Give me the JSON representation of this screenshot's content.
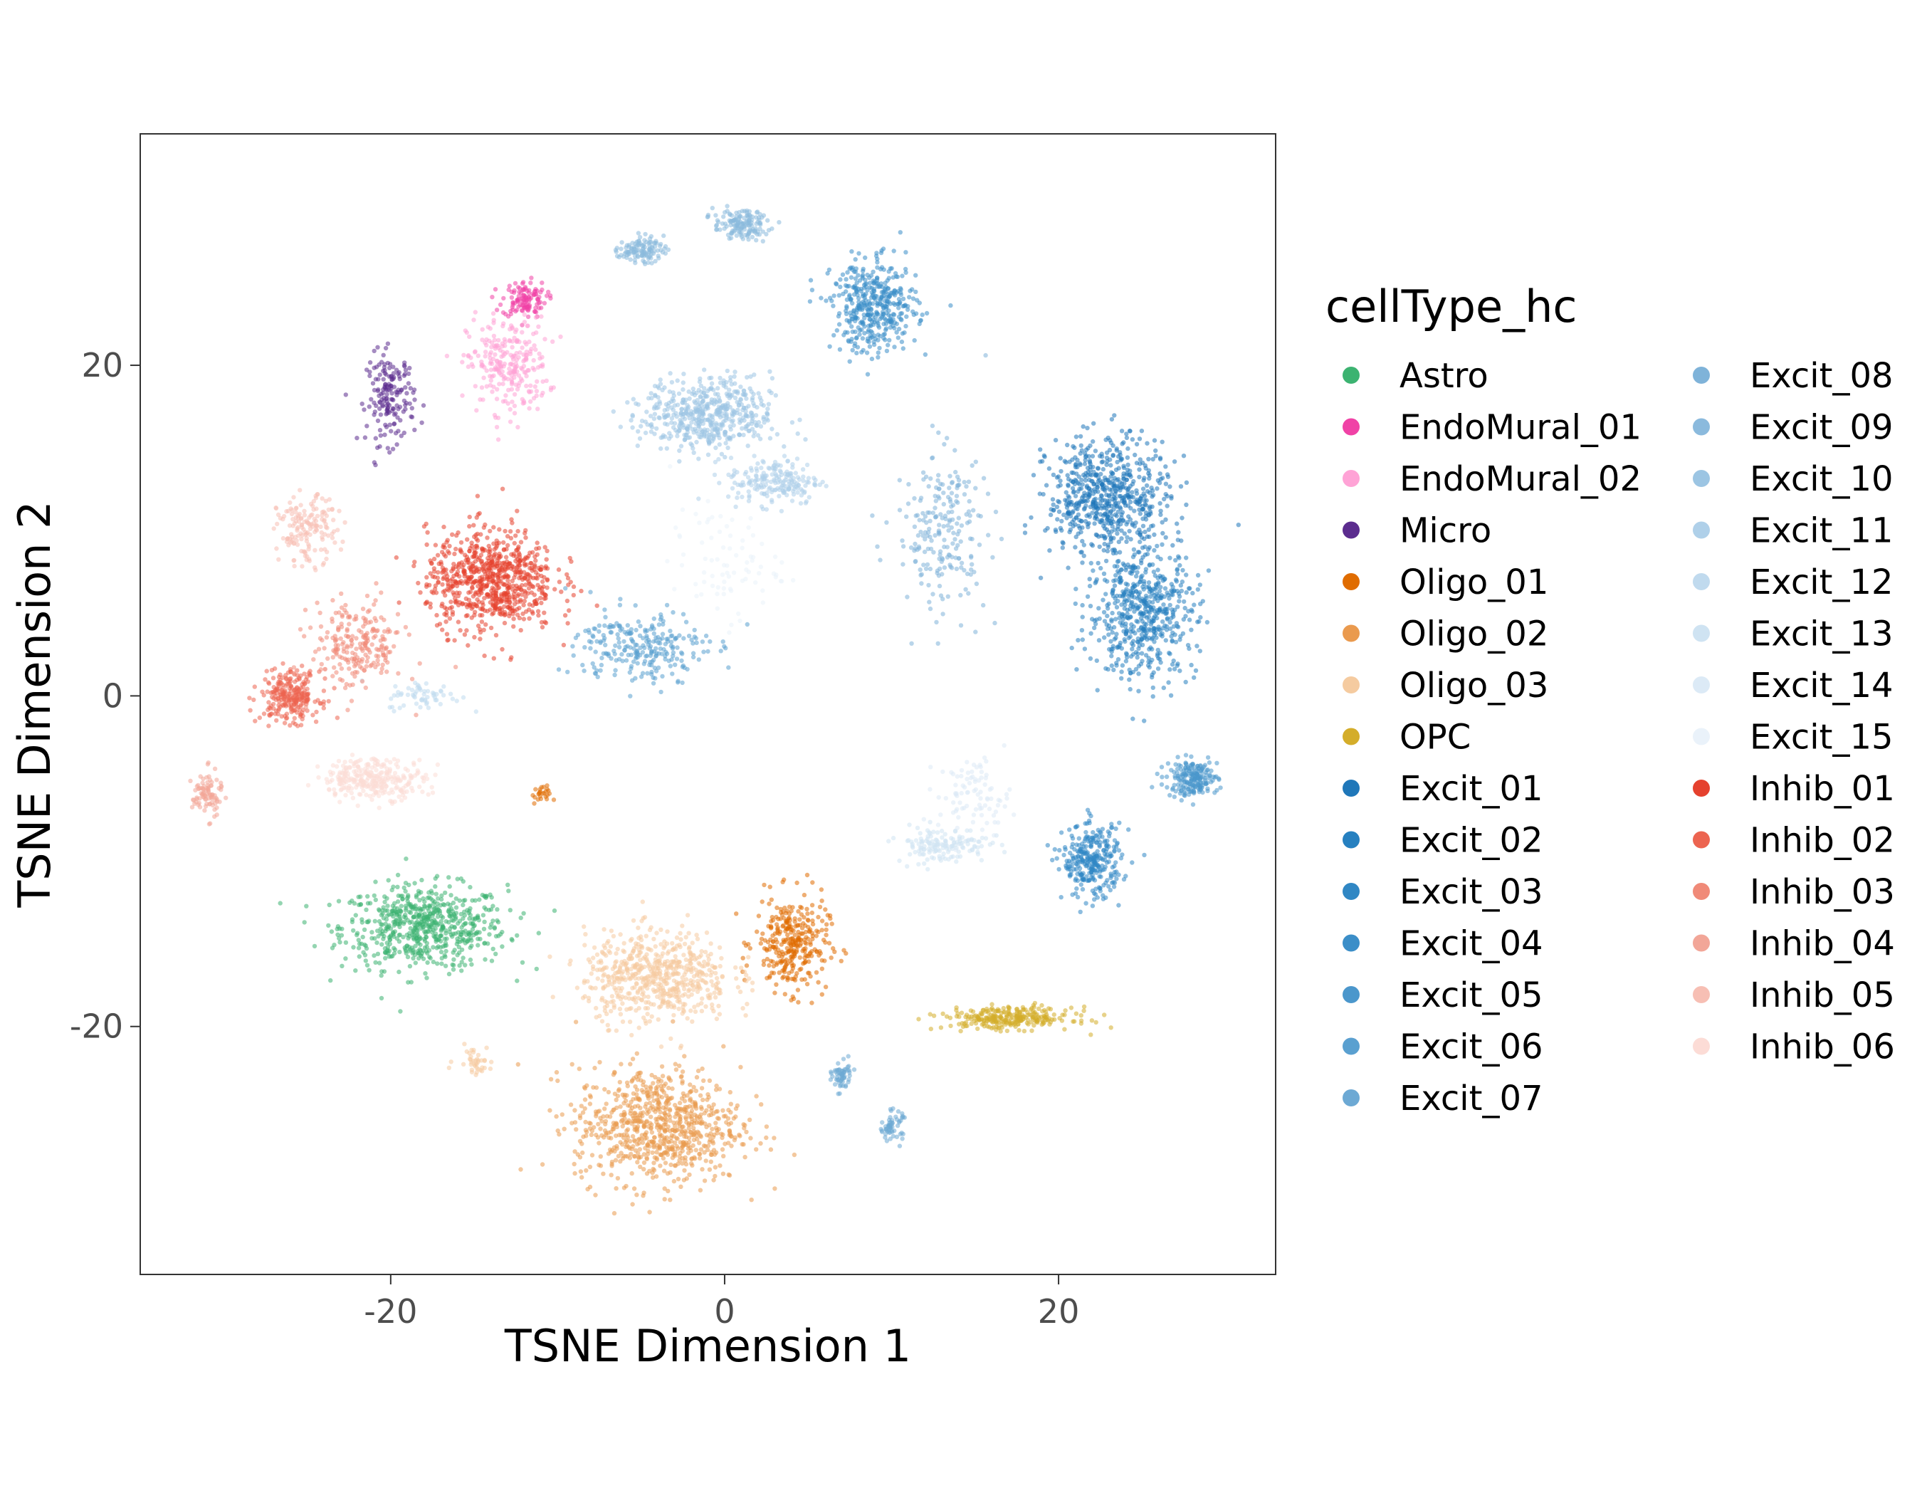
{
  "chart_data": {
    "type": "scatter",
    "title": "",
    "xlabel": "TSNE Dimension 1",
    "ylabel": "TSNE Dimension 2",
    "xlim": [
      -35,
      33
    ],
    "ylim": [
      -35,
      34
    ],
    "x_ticks": [
      -20,
      0,
      20
    ],
    "y_ticks": [
      -20,
      0,
      20
    ],
    "x_tick_labels": [
      "-20",
      "0",
      "20"
    ],
    "y_tick_labels": [
      "-20",
      "0",
      "20"
    ],
    "grid": false,
    "legend": {
      "title": "cellType_hc",
      "placement": "right",
      "columns": 2
    },
    "series": [
      {
        "name": "Astro",
        "color": "#3CB371",
        "clusters": [
          {
            "cx": -18,
            "cy": -14,
            "sx": 4.5,
            "sy": 2.3,
            "n": 650
          }
        ]
      },
      {
        "name": "EndoMural_01",
        "color": "#F042A6",
        "clusters": [
          {
            "cx": -12,
            "cy": 24,
            "sx": 1.2,
            "sy": 1.0,
            "n": 120
          }
        ]
      },
      {
        "name": "EndoMural_02",
        "color": "#FFA3D6",
        "clusters": [
          {
            "cx": -13,
            "cy": 20,
            "sx": 2.2,
            "sy": 2.6,
            "n": 260
          }
        ]
      },
      {
        "name": "Micro",
        "color": "#5B2C8E",
        "clusters": [
          {
            "cx": -20,
            "cy": 18,
            "sx": 1.3,
            "sy": 2.5,
            "n": 170
          }
        ]
      },
      {
        "name": "Oligo_01",
        "color": "#E06C00",
        "clusters": [
          {
            "cx": 4,
            "cy": -15,
            "sx": 2.0,
            "sy": 2.6,
            "n": 320
          },
          {
            "cx": -11,
            "cy": -6,
            "sx": 0.5,
            "sy": 0.5,
            "n": 25
          }
        ]
      },
      {
        "name": "Oligo_02",
        "color": "#EA9A4E",
        "clusters": [
          {
            "cx": -4,
            "cy": -26,
            "sx": 4.5,
            "sy": 3.2,
            "n": 800
          }
        ]
      },
      {
        "name": "Oligo_03",
        "color": "#F5CBA0",
        "clusters": [
          {
            "cx": -4,
            "cy": -17,
            "sx": 4.0,
            "sy": 2.5,
            "n": 620
          },
          {
            "cx": -15,
            "cy": -22,
            "sx": 1.0,
            "sy": 0.8,
            "n": 40
          }
        ]
      },
      {
        "name": "OPC",
        "color": "#D4AD2A",
        "clusters": [
          {
            "cx": 17,
            "cy": -19.5,
            "sx": 3.5,
            "sy": 0.6,
            "n": 280
          }
        ]
      },
      {
        "name": "Excit_01",
        "color": "#1F77B9",
        "clusters": [
          {
            "cx": 23,
            "cy": 12,
            "sx": 3.3,
            "sy": 3.3,
            "n": 650
          }
        ]
      },
      {
        "name": "Excit_02",
        "color": "#2680C0",
        "clusters": [
          {
            "cx": 25,
            "cy": 5,
            "sx": 3.0,
            "sy": 3.5,
            "n": 550
          }
        ]
      },
      {
        "name": "Excit_03",
        "color": "#3087C4",
        "clusters": [
          {
            "cx": 22,
            "cy": -10,
            "sx": 1.6,
            "sy": 2.0,
            "n": 300
          }
        ]
      },
      {
        "name": "Excit_04",
        "color": "#3B8EC8",
        "clusters": [
          {
            "cx": 9,
            "cy": 23.5,
            "sx": 2.3,
            "sy": 2.5,
            "n": 420
          }
        ]
      },
      {
        "name": "Excit_05",
        "color": "#4B97CC",
        "clusters": [
          {
            "cx": 28,
            "cy": -5,
            "sx": 1.4,
            "sy": 1.0,
            "n": 200
          }
        ]
      },
      {
        "name": "Excit_06",
        "color": "#5AA0D0",
        "clusters": [
          {
            "cx": -5,
            "cy": 3,
            "sx": 3.5,
            "sy": 2.0,
            "n": 260
          }
        ]
      },
      {
        "name": "Excit_07",
        "color": "#6DA9D4",
        "clusters": [
          {
            "cx": 10,
            "cy": -26,
            "sx": 0.6,
            "sy": 0.8,
            "n": 60
          },
          {
            "cx": 7,
            "cy": -23,
            "sx": 0.5,
            "sy": 0.8,
            "n": 60
          }
        ]
      },
      {
        "name": "Excit_08",
        "color": "#7FB3D9",
        "clusters": [
          {
            "cx": 13,
            "cy": 10,
            "sx": 2.5,
            "sy": 4.5,
            "n": 220
          }
        ]
      },
      {
        "name": "Excit_09",
        "color": "#8BBADD",
        "clusters": [
          {
            "cx": 1,
            "cy": 28.5,
            "sx": 1.5,
            "sy": 0.8,
            "n": 150
          },
          {
            "cx": -5,
            "cy": 27,
            "sx": 1.2,
            "sy": 0.7,
            "n": 120
          }
        ]
      },
      {
        "name": "Excit_10",
        "color": "#9CC5E3",
        "clusters": [
          {
            "cx": -1,
            "cy": 17,
            "sx": 3.5,
            "sy": 2.0,
            "n": 520
          }
        ]
      },
      {
        "name": "Excit_11",
        "color": "#AFD0E9",
        "clusters": [
          {
            "cx": 3,
            "cy": 13,
            "sx": 2.5,
            "sy": 1.3,
            "n": 200
          }
        ]
      },
      {
        "name": "Excit_12",
        "color": "#C0DAEE",
        "clusters": [
          {
            "cx": -18,
            "cy": 0,
            "sx": 2.0,
            "sy": 0.8,
            "n": 60
          }
        ]
      },
      {
        "name": "Excit_13",
        "color": "#CFE3F2",
        "clusters": [
          {
            "cx": 13,
            "cy": -9,
            "sx": 2.5,
            "sy": 1.0,
            "n": 150
          }
        ]
      },
      {
        "name": "Excit_14",
        "color": "#DCEAF6",
        "clusters": [
          {
            "cx": 15,
            "cy": -6,
            "sx": 2.0,
            "sy": 2.0,
            "n": 90
          }
        ]
      },
      {
        "name": "Excit_15",
        "color": "#EAF2FA",
        "clusters": [
          {
            "cx": 0,
            "cy": 8,
            "sx": 3.0,
            "sy": 3.0,
            "n": 80
          }
        ]
      },
      {
        "name": "Inhib_01",
        "color": "#E5412E",
        "clusters": [
          {
            "cx": -14,
            "cy": 7,
            "sx": 3.5,
            "sy": 2.8,
            "n": 750
          }
        ]
      },
      {
        "name": "Inhib_02",
        "color": "#EC6450",
        "clusters": [
          {
            "cx": -26,
            "cy": 0,
            "sx": 1.6,
            "sy": 1.4,
            "n": 260
          }
        ]
      },
      {
        "name": "Inhib_03",
        "color": "#F08A78",
        "clusters": [
          {
            "cx": -22,
            "cy": 3,
            "sx": 2.5,
            "sy": 2.5,
            "n": 230
          }
        ]
      },
      {
        "name": "Inhib_04",
        "color": "#F2A698",
        "clusters": [
          {
            "cx": -31,
            "cy": -6,
            "sx": 0.8,
            "sy": 1.3,
            "n": 90
          }
        ]
      },
      {
        "name": "Inhib_05",
        "color": "#F7BFB4",
        "clusters": [
          {
            "cx": -25,
            "cy": 10,
            "sx": 1.6,
            "sy": 1.8,
            "n": 160
          }
        ]
      },
      {
        "name": "Inhib_06",
        "color": "#FCDCD6",
        "clusters": [
          {
            "cx": -21,
            "cy": -5,
            "sx": 2.8,
            "sy": 1.1,
            "n": 300
          }
        ]
      }
    ]
  }
}
